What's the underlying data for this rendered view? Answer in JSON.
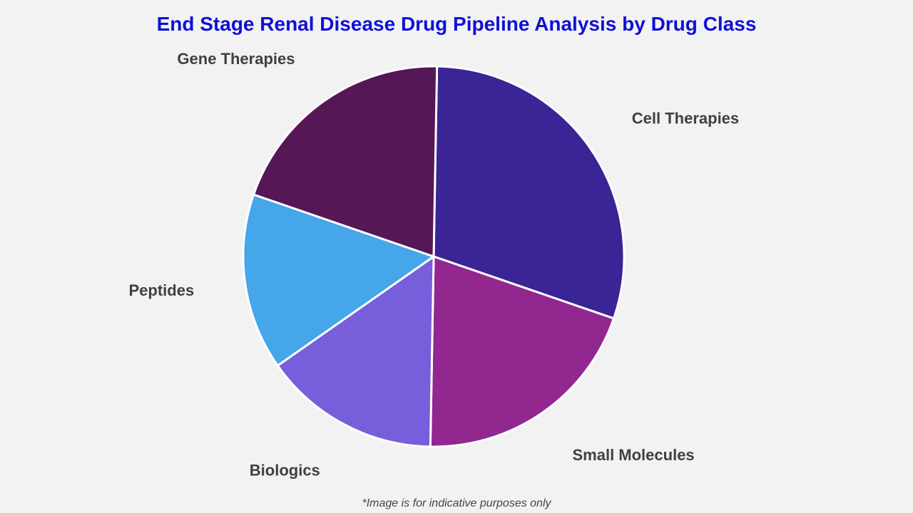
{
  "chart_data": {
    "type": "pie",
    "title": "End Stage Renal Disease Drug Pipeline Analysis by Drug Class",
    "categories": [
      "Cell Therapies",
      "Small Molecules",
      "Biologics",
      "Peptides",
      "Gene Therapies"
    ],
    "values": [
      30,
      20,
      15,
      15,
      20
    ],
    "colors": [
      "#3a2496",
      "#92278f",
      "#775edb",
      "#45a6ea",
      "#561756"
    ],
    "legend": "none",
    "footnote": "*Image is for indicative purposes only"
  }
}
